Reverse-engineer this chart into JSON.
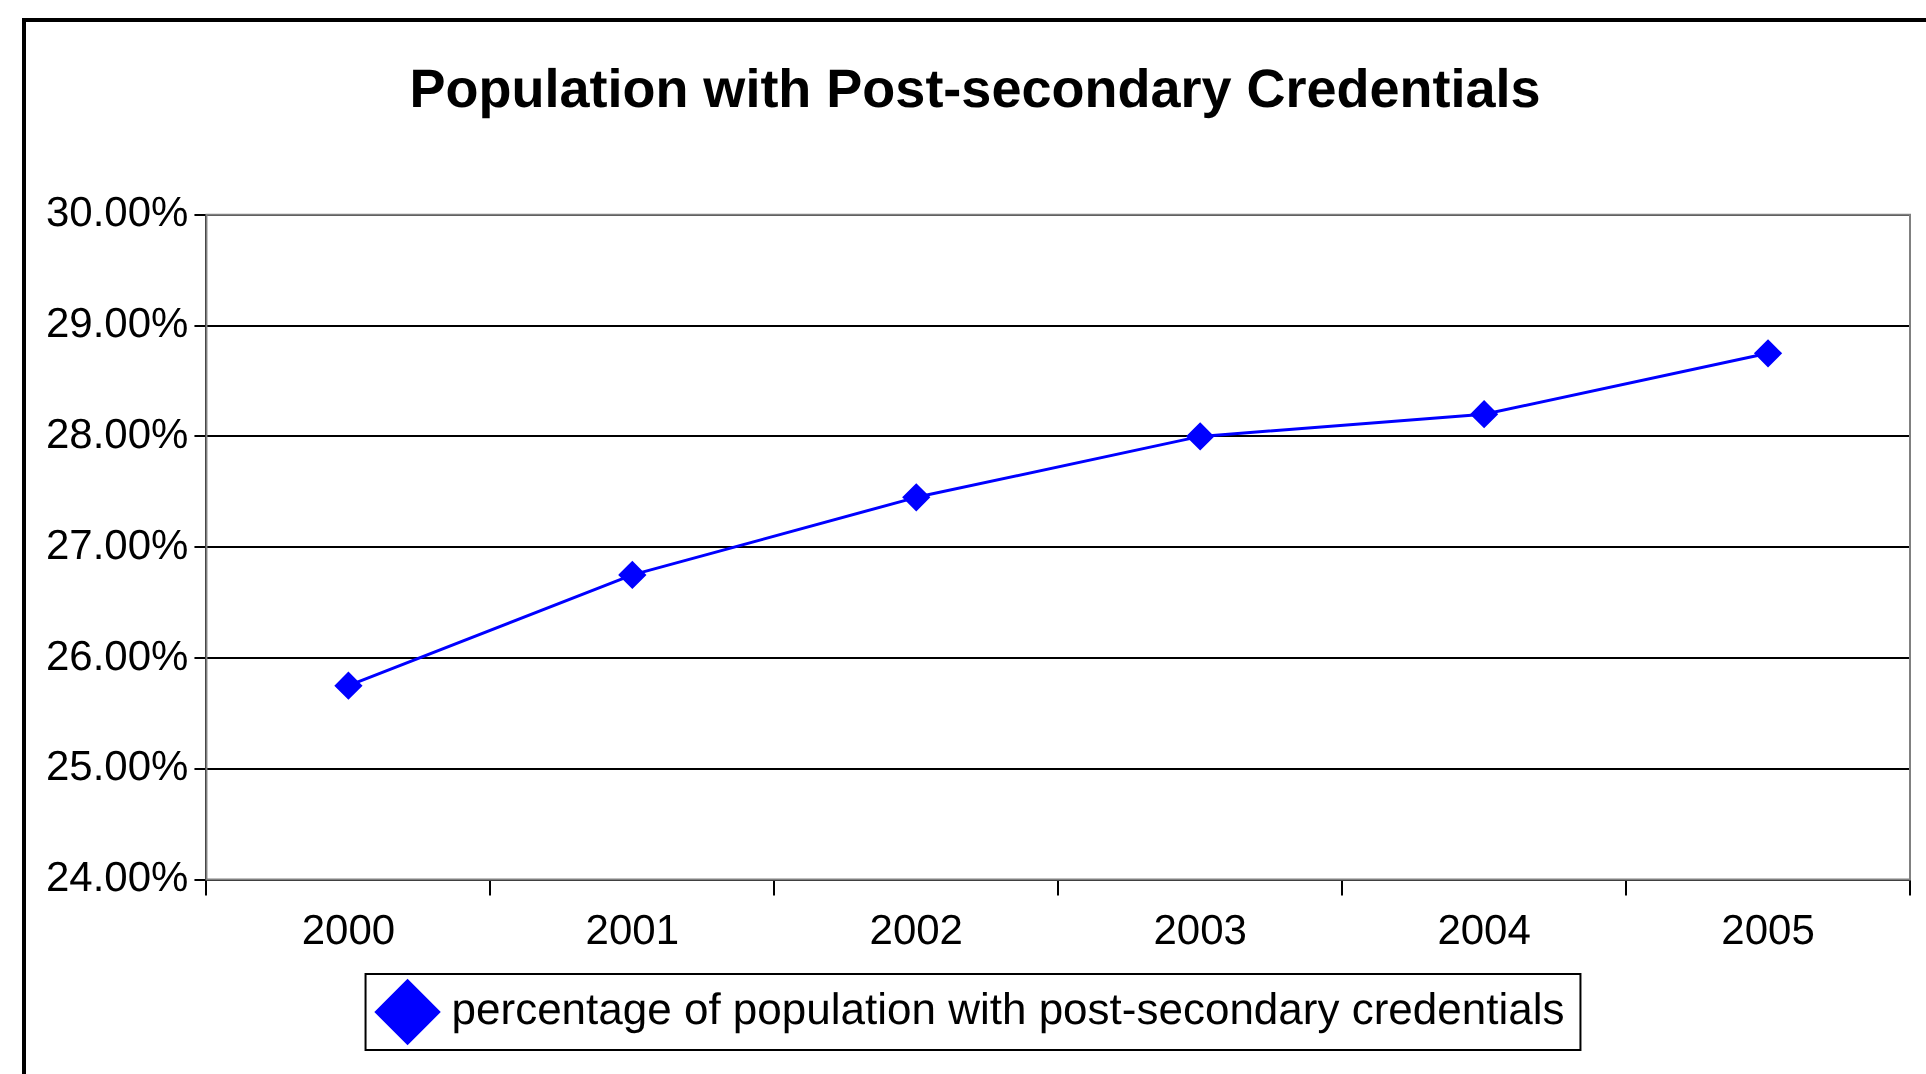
{
  "chart_data": {
    "type": "line",
    "title": "Population with Post-secondary Credentials",
    "categories": [
      "2000",
      "2001",
      "2002",
      "2003",
      "2004",
      "2005"
    ],
    "series": [
      {
        "name": "percentage of population with post-secondary credentials",
        "color": "#0000ff",
        "values": [
          25.75,
          26.75,
          27.45,
          28.0,
          28.2,
          28.75
        ]
      }
    ],
    "ylim": [
      24,
      30
    ],
    "yticks": [
      {
        "value": 24,
        "label": "24.00%"
      },
      {
        "value": 25,
        "label": "25.00%"
      },
      {
        "value": 26,
        "label": "26.00%"
      },
      {
        "value": 27,
        "label": "27.00%"
      },
      {
        "value": 28,
        "label": "28.00%"
      },
      {
        "value": 29,
        "label": "29.00%"
      },
      {
        "value": 30,
        "label": "30.00%"
      }
    ],
    "grid": "y",
    "legend": "bottom",
    "marker": "diamond",
    "line_style": "solid"
  }
}
